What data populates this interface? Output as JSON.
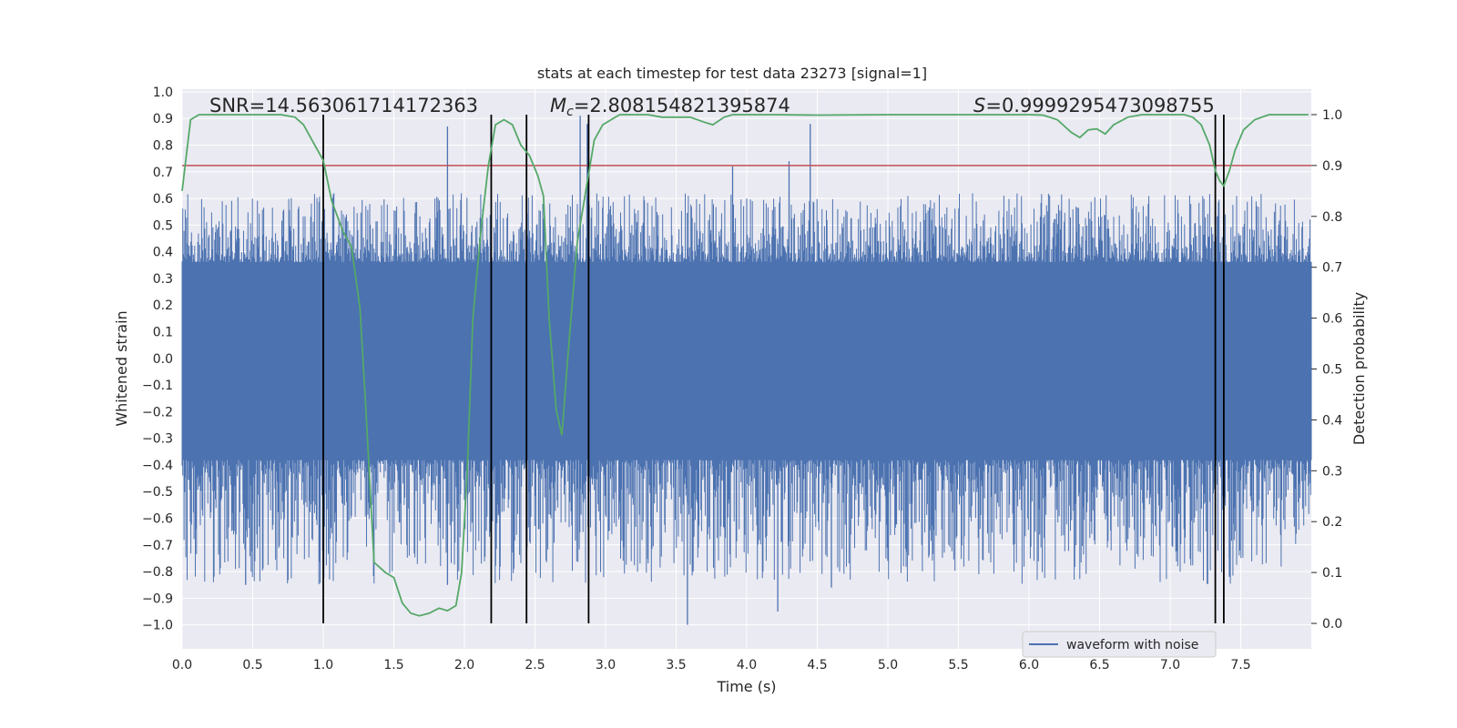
{
  "chart_data": {
    "type": "line",
    "title": "stats at each timestep for test data 23273 [signal=1]",
    "xlabel": "Time (s)",
    "ylabel_left": "Whitened strain",
    "ylabel_right": "Detection probability",
    "xlim": [
      0.0,
      8.0
    ],
    "ylim_left": [
      -1.09,
      1.01
    ],
    "ylim_right": [
      -0.05,
      1.05
    ],
    "xticks": [
      "0.0",
      "0.5",
      "1.0",
      "1.5",
      "2.0",
      "2.5",
      "3.0",
      "3.5",
      "4.0",
      "4.5",
      "5.0",
      "5.5",
      "6.0",
      "6.5",
      "7.0",
      "7.5"
    ],
    "yticks_left": [
      "1.0",
      "0.9",
      "0.8",
      "0.7",
      "0.6",
      "0.5",
      "0.4",
      "0.3",
      "0.2",
      "0.1",
      "0.0",
      "−0.1",
      "−0.2",
      "−0.3",
      "−0.4",
      "−0.5",
      "−0.6",
      "−0.7",
      "−0.8",
      "−0.9",
      "−1.0"
    ],
    "yticks_right": [
      "1.0",
      "0.9",
      "0.8",
      "0.7",
      "0.6",
      "0.5",
      "0.4",
      "0.3",
      "0.2",
      "0.1",
      "0.0"
    ],
    "annotations": {
      "snr": "SNR=14.563061714172363",
      "mc_symbol": "M",
      "mc_sub": "c",
      "mc_value": "=2.808154821395874",
      "s_symbol": "S",
      "s_value": "=0.9999295473098755"
    },
    "legend": {
      "label": "waveform with noise",
      "position": "lower-right"
    },
    "threshold": {
      "right_axis_value": 0.9,
      "color": "#c44e52"
    },
    "vlines": {
      "x": [
        1.0,
        2.19,
        2.44,
        2.88,
        7.32,
        7.38
      ],
      "right_axis_range": [
        0.0,
        1.0
      ]
    },
    "waveform": {
      "name": "waveform with noise",
      "color": "#4c72b0",
      "noise_band": [
        -0.38,
        0.36
      ],
      "tail_range": [
        -0.85,
        0.62
      ],
      "spikes": [
        {
          "x": 1.88,
          "y": 0.87
        },
        {
          "x": 2.82,
          "y": 0.91
        },
        {
          "x": 2.87,
          "y": 0.88
        },
        {
          "x": 4.45,
          "y": 0.88
        },
        {
          "x": 4.3,
          "y": 0.74
        },
        {
          "x": 3.9,
          "y": 0.72
        },
        {
          "x": 0.45,
          "y": -0.85
        },
        {
          "x": 3.58,
          "y": -1.0
        },
        {
          "x": 4.22,
          "y": -0.95
        },
        {
          "x": 4.6,
          "y": -0.86
        },
        {
          "x": 2.35,
          "y": -0.79
        },
        {
          "x": 5.0,
          "y": -0.76
        },
        {
          "x": 1.88,
          "y": -0.85
        },
        {
          "x": 3.62,
          "y": -0.8
        },
        {
          "x": 7.42,
          "y": -0.82
        }
      ]
    },
    "detection_probability": {
      "name": "detection probability",
      "color": "#55a868",
      "x": [
        0.0,
        0.06,
        0.12,
        0.2,
        0.3,
        0.4,
        0.5,
        0.6,
        0.7,
        0.8,
        0.86,
        0.92,
        0.98,
        1.0,
        1.06,
        1.14,
        1.2,
        1.26,
        1.3,
        1.36,
        1.44,
        1.5,
        1.56,
        1.62,
        1.68,
        1.75,
        1.82,
        1.88,
        1.94,
        1.98,
        2.02,
        2.06,
        2.12,
        2.17,
        2.22,
        2.28,
        2.34,
        2.4,
        2.46,
        2.52,
        2.56,
        2.6,
        2.65,
        2.69,
        2.74,
        2.8,
        2.86,
        2.92,
        2.98,
        3.04,
        3.1,
        3.2,
        3.3,
        3.4,
        3.5,
        3.6,
        3.7,
        3.76,
        3.84,
        3.9,
        4.0,
        4.2,
        4.5,
        5.0,
        5.5,
        6.0,
        6.1,
        6.2,
        6.3,
        6.36,
        6.42,
        6.48,
        6.54,
        6.6,
        6.7,
        6.8,
        6.9,
        7.0,
        7.1,
        7.16,
        7.22,
        7.28,
        7.32,
        7.35,
        7.38,
        7.42,
        7.46,
        7.52,
        7.6,
        7.7,
        7.85,
        7.98
      ],
      "y": [
        0.85,
        0.99,
        1.0,
        1.0,
        1.0,
        1.0,
        1.0,
        1.0,
        1.0,
        0.995,
        0.98,
        0.95,
        0.92,
        0.91,
        0.83,
        0.77,
        0.74,
        0.62,
        0.43,
        0.12,
        0.1,
        0.09,
        0.04,
        0.02,
        0.015,
        0.02,
        0.03,
        0.025,
        0.035,
        0.1,
        0.3,
        0.6,
        0.78,
        0.9,
        0.98,
        0.99,
        0.98,
        0.94,
        0.92,
        0.88,
        0.84,
        0.6,
        0.42,
        0.37,
        0.55,
        0.75,
        0.85,
        0.95,
        0.98,
        0.99,
        1.0,
        1.0,
        1.0,
        0.995,
        0.995,
        0.995,
        0.985,
        0.98,
        0.995,
        1.0,
        1.0,
        1.0,
        0.999,
        1.0,
        1.0,
        1.0,
        0.999,
        0.99,
        0.965,
        0.955,
        0.97,
        0.972,
        0.962,
        0.98,
        0.995,
        1.0,
        1.0,
        1.0,
        1.0,
        0.995,
        0.98,
        0.94,
        0.89,
        0.87,
        0.86,
        0.89,
        0.93,
        0.97,
        0.99,
        1.0,
        1.0,
        1.0
      ]
    }
  }
}
